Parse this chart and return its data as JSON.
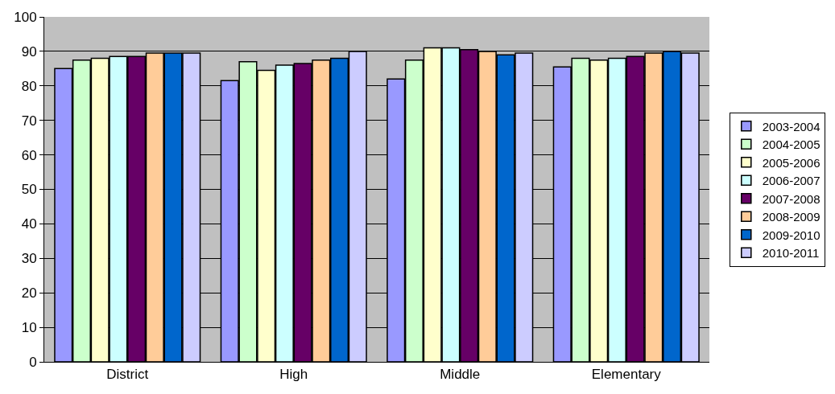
{
  "chart_data": {
    "type": "bar",
    "categories": [
      "District",
      "High",
      "Middle",
      "Elementary"
    ],
    "series": [
      {
        "name": "2003-2004",
        "color": "#9999ff",
        "values": [
          85,
          81.5,
          82,
          85.5
        ]
      },
      {
        "name": "2004-2005",
        "color": "#ccffcc",
        "values": [
          87.5,
          87,
          87.5,
          88
        ]
      },
      {
        "name": "2005-2006",
        "color": "#ffffcc",
        "values": [
          88,
          84.5,
          91,
          87.5
        ]
      },
      {
        "name": "2006-2007",
        "color": "#ccffff",
        "values": [
          88.5,
          86,
          91,
          88
        ]
      },
      {
        "name": "2007-2008",
        "color": "#660066",
        "values": [
          88.5,
          86.5,
          90.5,
          88.5
        ]
      },
      {
        "name": "2008-2009",
        "color": "#ffcc99",
        "values": [
          89.5,
          87.5,
          90,
          89.5
        ]
      },
      {
        "name": "2009-2010",
        "color": "#0066cc",
        "values": [
          89.5,
          88,
          89,
          90
        ]
      },
      {
        "name": "2010-2011",
        "color": "#ccccff",
        "values": [
          89.5,
          90,
          89.5,
          89.5
        ]
      }
    ],
    "ylim": [
      0,
      100
    ],
    "yticks": [
      0,
      10,
      20,
      30,
      40,
      50,
      60,
      70,
      80,
      90,
      100
    ],
    "grid": "y",
    "legend": "right"
  }
}
